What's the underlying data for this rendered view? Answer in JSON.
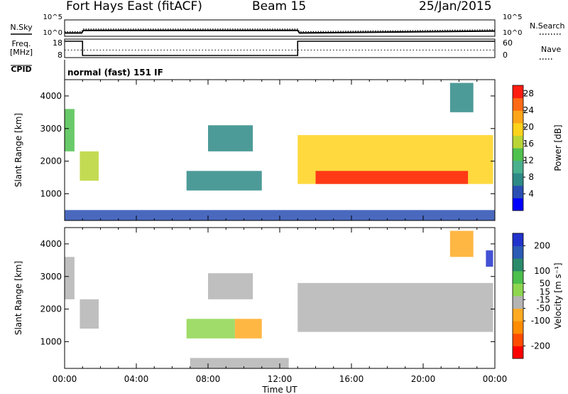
{
  "header": {
    "station": "Fort Hays East (fitACF)",
    "beam": "Beam 15",
    "date": "25/Jan/2015"
  },
  "colors": {
    "power_scale": [
      "#0000ff",
      "#2a4fb3",
      "#2e8a86",
      "#49b08d",
      "#4fc14f",
      "#b9d535",
      "#ffd21c",
      "#ffa51a",
      "#ff6a16",
      "#ff1d10"
    ],
    "velocity_scale": [
      "#ff0000",
      "#ff4d00",
      "#ff8c00",
      "#ffaa22",
      "#b4b4b4",
      "#8ed64f",
      "#4cbf4c",
      "#2a8a6a",
      "#2b5bb5",
      "#2233cc"
    ],
    "ground_scatter": "#b4b4b4"
  },
  "chart_data": [
    {
      "type": "line",
      "panel": "noise",
      "ylabel": "N.Sky",
      "right_label": "N.Search",
      "left_ticks": [
        "10^5",
        "10^0"
      ],
      "right_ticks": [
        "10^5",
        "10^0"
      ],
      "series": [
        {
          "name": "N.Sky",
          "style": "solid",
          "x": [
            0,
            0.95,
            1.05,
            13.0,
            13.1,
            24
          ],
          "y": [
            1.0,
            1.0,
            1.8,
            1.8,
            1.0,
            1.6
          ]
        },
        {
          "name": "N.Search",
          "style": "dotted",
          "x": [
            0,
            0.95,
            1.05,
            13.0,
            13.1,
            24
          ],
          "y": [
            1.4,
            1.4,
            2.2,
            2.2,
            1.4,
            2.0
          ]
        }
      ]
    },
    {
      "type": "line",
      "panel": "frequency",
      "ylabel": "Freq. [MHz]",
      "right_label": "Nave",
      "left_ticks": [
        "18",
        "8"
      ],
      "right_ticks": [
        "60",
        "0"
      ],
      "series": [
        {
          "name": "Freq.",
          "style": "solid",
          "x": [
            0,
            1.0,
            1.0,
            13.0,
            13.0,
            24
          ],
          "y": [
            18,
            18,
            8,
            8,
            18,
            18
          ]
        },
        {
          "name": "Nave",
          "style": "dotted",
          "x": [
            0,
            24
          ],
          "y": [
            23,
            23
          ]
        }
      ]
    },
    {
      "type": "table",
      "panel": "cpid",
      "label": "CPID",
      "text": "normal (fast) 151 IF"
    },
    {
      "type": "heatmap",
      "panel": "power",
      "ylabel": "Slant Range [km]",
      "ylim": [
        180,
        4500
      ],
      "yticks": [
        "1000",
        "2000",
        "3000",
        "4000"
      ],
      "xlim": [
        0,
        24
      ],
      "colorbar_label": "Power [dB]",
      "colorbar_ticks": [
        "4",
        "8",
        "12",
        "16",
        "20",
        "24",
        "28"
      ],
      "colorbar_range": [
        0,
        30
      ],
      "patches": [
        {
          "x0": 0.0,
          "x1": 0.55,
          "y0": 2300,
          "y1": 3600,
          "value": 14
        },
        {
          "x0": 0.85,
          "x1": 1.9,
          "y0": 1400,
          "y1": 2300,
          "value": 16
        },
        {
          "x0": 6.8,
          "x1": 11.0,
          "y0": 1100,
          "y1": 1700,
          "value": 8
        },
        {
          "x0": 8.0,
          "x1": 10.5,
          "y0": 2300,
          "y1": 3100,
          "value": 6
        },
        {
          "x0": 13.0,
          "x1": 23.9,
          "y0": 1300,
          "y1": 2800,
          "value": 20
        },
        {
          "x0": 14.0,
          "x1": 22.5,
          "y0": 1300,
          "y1": 1700,
          "value": 28
        },
        {
          "x0": 21.5,
          "x1": 22.8,
          "y0": 3500,
          "y1": 4400,
          "value": 7
        },
        {
          "x0": 0.0,
          "x1": 24.0,
          "y0": 180,
          "y1": 500,
          "value": 5
        }
      ]
    },
    {
      "type": "heatmap",
      "panel": "velocity",
      "ylabel": "Slant Range [km]",
      "ylim": [
        180,
        4500
      ],
      "yticks": [
        "1000",
        "2000",
        "3000",
        "4000"
      ],
      "xlim": [
        0,
        24
      ],
      "xticks": [
        "00:00",
        "04:00",
        "08:00",
        "12:00",
        "16:00",
        "20:00",
        "00:00"
      ],
      "xlabel": "Time UT",
      "colorbar_label": "Velocity [m s⁻¹]",
      "colorbar_ticks": [
        "-200",
        "-100",
        "-50",
        "-15",
        "15",
        "50",
        "100",
        "200"
      ],
      "colorbar_range": [
        -250,
        250
      ],
      "patches": [
        {
          "x0": 0.0,
          "x1": 0.55,
          "y0": 2300,
          "y1": 3600,
          "value": 0,
          "ground_scatter": true
        },
        {
          "x0": 0.85,
          "x1": 1.9,
          "y0": 1400,
          "y1": 2300,
          "value": -5,
          "ground_scatter": true
        },
        {
          "x0": 6.8,
          "x1": 9.5,
          "y0": 1100,
          "y1": 1700,
          "value": 40
        },
        {
          "x0": 9.5,
          "x1": 11.0,
          "y0": 1100,
          "y1": 1700,
          "value": -60
        },
        {
          "x0": 8.0,
          "x1": 10.5,
          "y0": 2300,
          "y1": 3100,
          "value": 0,
          "ground_scatter": true
        },
        {
          "x0": 13.0,
          "x1": 23.9,
          "y0": 1300,
          "y1": 2800,
          "value": 0,
          "ground_scatter": true
        },
        {
          "x0": 23.5,
          "x1": 23.9,
          "y0": 3300,
          "y1": 3800,
          "value": 220
        },
        {
          "x0": 21.5,
          "x1": 22.8,
          "y0": 3600,
          "y1": 4400,
          "value": -80
        },
        {
          "x0": 7.0,
          "x1": 12.5,
          "y0": 180,
          "y1": 500,
          "value": -50
        }
      ]
    }
  ]
}
